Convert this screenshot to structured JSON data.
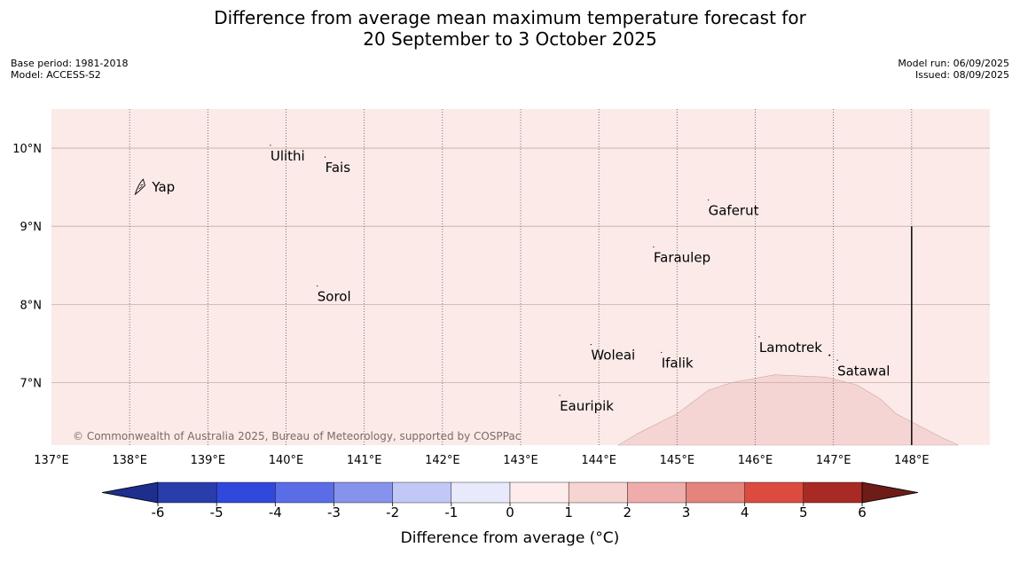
{
  "title": {
    "line1": "Difference from average mean maximum temperature forecast for",
    "line2": "20 September to 3 October 2025"
  },
  "meta": {
    "base_period": "Base period: 1981-2018",
    "model": "Model: ACCESS-S2",
    "model_run": "Model run: 06/09/2025",
    "issued": "Issued: 08/09/2025"
  },
  "copyright": "© Commonwealth of Australia 2025, Bureau of Meteorology, supported by COSPPac",
  "map": {
    "lon_range": [
      137.0,
      149.0
    ],
    "lat_range": [
      6.2,
      10.5
    ],
    "lon_ticks": [
      137,
      138,
      139,
      140,
      141,
      142,
      143,
      144,
      145,
      146,
      147,
      148
    ],
    "lon_tick_labels": [
      "137°E",
      "138°E",
      "139°E",
      "140°E",
      "141°E",
      "142°E",
      "143°E",
      "144°E",
      "145°E",
      "146°E",
      "147°E",
      "148°E"
    ],
    "lat_ticks": [
      7,
      8,
      9,
      10
    ],
    "lat_tick_labels": [
      "7°N",
      "8°N",
      "9°N",
      "10°N"
    ],
    "background_value_range": "0 to 1",
    "background_color": "#fbeae8",
    "warm_region_value_range": "1 to 2",
    "warm_region_color": "#f5d5d3",
    "warm_region_boundary": [
      [
        144.25,
        6.2
      ],
      [
        144.5,
        6.35
      ],
      [
        145.0,
        6.6
      ],
      [
        145.4,
        6.9
      ],
      [
        145.7,
        7.0
      ],
      [
        146.25,
        7.1
      ],
      [
        146.9,
        7.07
      ],
      [
        147.3,
        6.97
      ],
      [
        147.6,
        6.79
      ],
      [
        147.8,
        6.6
      ],
      [
        148.4,
        6.29
      ],
      [
        148.6,
        6.2
      ]
    ],
    "boundary_line": {
      "lon": 148.0,
      "lat_from": 6.2,
      "lat_to": 9.0
    },
    "places": [
      {
        "name": "Ulithi",
        "lon": 139.8,
        "lat": 9.9
      },
      {
        "name": "Fais",
        "lon": 140.5,
        "lat": 9.75
      },
      {
        "name": "Yap",
        "lon": 138.15,
        "lat": 9.5
      },
      {
        "name": "Gaferut",
        "lon": 145.4,
        "lat": 9.2
      },
      {
        "name": "Faraulep",
        "lon": 144.7,
        "lat": 8.6
      },
      {
        "name": "Sorol",
        "lon": 140.4,
        "lat": 8.1
      },
      {
        "name": "Lamotrek",
        "lon": 146.05,
        "lat": 7.45
      },
      {
        "name": "Woleai",
        "lon": 143.9,
        "lat": 7.35
      },
      {
        "name": "Ifalik",
        "lon": 144.8,
        "lat": 7.25
      },
      {
        "name": "Satawal",
        "lon": 147.05,
        "lat": 7.15
      },
      {
        "name": "Eauripik",
        "lon": 143.5,
        "lat": 6.7
      }
    ]
  },
  "colorbar": {
    "label": "Difference from average (°C)",
    "tick_labels": [
      "-6",
      "-5",
      "-4",
      "-3",
      "-2",
      "-1",
      "0",
      "1",
      "2",
      "3",
      "4",
      "5",
      "6"
    ],
    "colors": [
      "#1e2e8e",
      "#2a3dac",
      "#3148dc",
      "#5a6de6",
      "#8693ec",
      "#c2c8f5",
      "#e8eafb",
      "#fdeceb",
      "#f6d4d2",
      "#eeadaa",
      "#e5837d",
      "#dc4b3f",
      "#a92a24",
      "#6e1c18"
    ]
  }
}
